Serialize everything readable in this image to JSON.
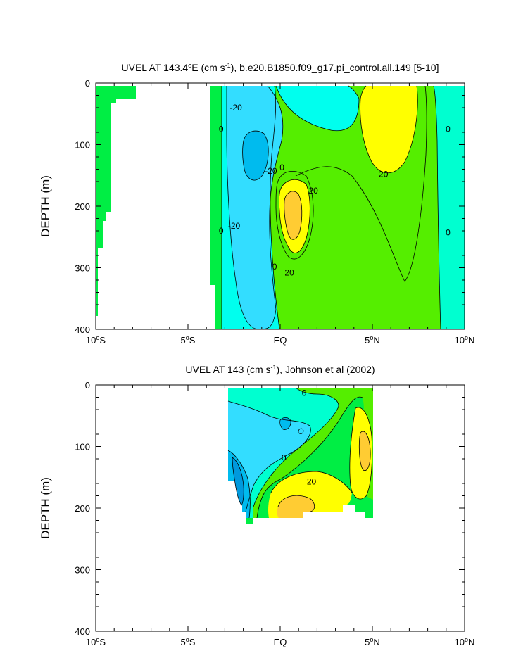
{
  "colors": {
    "green": "#00ee44",
    "lightgreen": "#55ee00",
    "aqua": "#00ffd0",
    "cyan": "#33ddff",
    "lightcyan": "#00ffee",
    "blue": "#00bbee",
    "deepblue": "#0099dd",
    "yellow": "#ffff00",
    "orange": "#ffcc33",
    "white": "#ffffff",
    "line": "#000000"
  },
  "chart_data": [
    {
      "type": "contour",
      "title_prefix": "UVEL AT 143.4",
      "title_deg": "o",
      "title_mid": "E (cm s",
      "title_exp": "-1",
      "title_suffix": "), b.e20.B1850.f09_g17.pi_control.all.149 [5-10]",
      "ylabel": "DEPTH (m)",
      "xlim": [
        -10,
        10
      ],
      "ylim": [
        0,
        400
      ],
      "y_inverted": true,
      "x_ticks": [
        {
          "value": -10,
          "num": "10",
          "deg": "o",
          "hemi": "S"
        },
        {
          "value": -5,
          "num": "5",
          "deg": "o",
          "hemi": "S"
        },
        {
          "value": 0,
          "num": "EQ",
          "deg": "",
          "hemi": ""
        },
        {
          "value": 5,
          "num": "5",
          "deg": "o",
          "hemi": "N"
        },
        {
          "value": 10,
          "num": "10",
          "deg": "o",
          "hemi": "N"
        }
      ],
      "y_ticks": [
        0,
        100,
        200,
        300,
        400
      ],
      "contour_labels": [
        {
          "text": "-20",
          "x": -2.4,
          "y": 40
        },
        {
          "text": "0",
          "x": -3.2,
          "y": 75
        },
        {
          "text": "-20",
          "x": -0.5,
          "y": 143
        },
        {
          "text": "0",
          "x": 0.1,
          "y": 137
        },
        {
          "text": "20",
          "x": 1.8,
          "y": 175
        },
        {
          "text": "-20",
          "x": -2.5,
          "y": 232
        },
        {
          "text": "0",
          "x": -3.2,
          "y": 240
        },
        {
          "text": "0",
          "x": -0.3,
          "y": 298
        },
        {
          "text": "20",
          "x": 0.5,
          "y": 308
        },
        {
          "text": "20",
          "x": 5.6,
          "y": 148
        },
        {
          "text": "0",
          "x": 9.1,
          "y": 75
        },
        {
          "text": "0",
          "x": 9.1,
          "y": 243
        }
      ]
    },
    {
      "type": "contour",
      "title_prefix": "UVEL AT 143 (cm s",
      "title_exp": "-1",
      "title_suffix": "), Johnson et al (2002)",
      "ylabel": "DEPTH (m)",
      "xlim": [
        -10,
        10
      ],
      "ylim": [
        0,
        400
      ],
      "y_inverted": true,
      "x_ticks": [
        {
          "value": -10,
          "num": "10",
          "deg": "o",
          "hemi": "S"
        },
        {
          "value": -5,
          "num": "5",
          "deg": "o",
          "hemi": "S"
        },
        {
          "value": 0,
          "num": "EQ",
          "deg": "",
          "hemi": ""
        },
        {
          "value": 5,
          "num": "5",
          "deg": "o",
          "hemi": "N"
        },
        {
          "value": 10,
          "num": "10",
          "deg": "o",
          "hemi": "N"
        }
      ],
      "y_ticks": [
        0,
        100,
        200,
        300,
        400
      ],
      "contour_labels": [
        {
          "text": "0",
          "x": 1.3,
          "y": 13
        },
        {
          "text": "0",
          "x": 0.2,
          "y": 118
        },
        {
          "text": "20",
          "x": 1.7,
          "y": 157
        }
      ]
    }
  ]
}
